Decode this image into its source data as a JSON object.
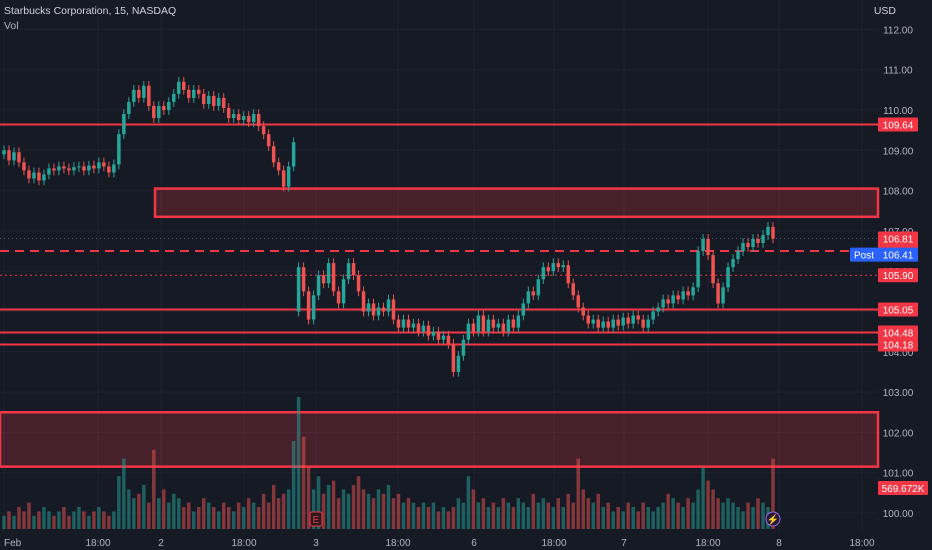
{
  "header": {
    "symbol_line": "Starbucks Corporation, 15, NASDAQ",
    "volume_label": "Vol",
    "currency": "USD"
  },
  "colors": {
    "background": "#161a25",
    "up": "#26a69a",
    "down": "#ef5350",
    "level": "#f23645",
    "post_badge": "#2962ff"
  },
  "chart_data": {
    "type": "candlestick",
    "title": "Starbucks Corporation, 15, NASDAQ",
    "ylabel": "USD",
    "ylim": [
      99.7,
      112.5
    ],
    "y_ticks": [
      100.0,
      101.0,
      102.0,
      103.0,
      104.0,
      105.0,
      106.0,
      107.0,
      108.0,
      109.0,
      110.0,
      111.0,
      112.0
    ],
    "x_ticks": [
      "Feb",
      "18:00",
      "2",
      "18:00",
      "3",
      "18:00",
      "6",
      "18:00",
      "7",
      "18:00",
      "8",
      "18:00"
    ],
    "grid": true,
    "price_levels": [
      {
        "label": "109.64",
        "value": 109.64,
        "style": "solid"
      },
      {
        "label": "106.50",
        "value": 106.5,
        "style": "dashed"
      },
      {
        "label": "105.90",
        "value": 105.9,
        "style": "dotted"
      },
      {
        "label": "105.05",
        "value": 105.05,
        "style": "solid"
      },
      {
        "label": "104.48",
        "value": 104.48,
        "style": "solid"
      },
      {
        "label": "104.18",
        "value": 104.18,
        "style": "solid"
      }
    ],
    "zones": [
      {
        "from": 107.35,
        "to": 108.05
      },
      {
        "from": 101.15,
        "to": 102.5
      }
    ],
    "last_price": {
      "label": "106.81",
      "value": 106.81
    },
    "post_market": {
      "badge": "Post",
      "label": "106.41",
      "value": 106.41
    },
    "volume_label": "569.672K",
    "event_markers": [
      "E",
      "⚡"
    ],
    "series": [
      {
        "o": 108.9,
        "c": 109.0
      },
      {
        "o": 109.0,
        "c": 108.75
      },
      {
        "o": 108.75,
        "c": 108.95
      },
      {
        "o": 108.95,
        "c": 108.7
      },
      {
        "o": 108.7,
        "c": 108.5
      },
      {
        "o": 108.5,
        "c": 108.3
      },
      {
        "o": 108.3,
        "c": 108.45
      },
      {
        "o": 108.45,
        "c": 108.25
      },
      {
        "o": 108.25,
        "c": 108.4
      },
      {
        "o": 108.4,
        "c": 108.55
      },
      {
        "o": 108.55,
        "c": 108.5
      },
      {
        "o": 108.5,
        "c": 108.6
      },
      {
        "o": 108.6,
        "c": 108.55
      },
      {
        "o": 108.55,
        "c": 108.5
      },
      {
        "o": 108.5,
        "c": 108.58
      },
      {
        "o": 108.58,
        "c": 108.6
      },
      {
        "o": 108.6,
        "c": 108.5
      },
      {
        "o": 108.5,
        "c": 108.62
      },
      {
        "o": 108.62,
        "c": 108.55
      },
      {
        "o": 108.55,
        "c": 108.7
      },
      {
        "o": 108.7,
        "c": 108.6
      },
      {
        "o": 108.6,
        "c": 108.45
      },
      {
        "o": 108.45,
        "c": 108.65
      },
      {
        "o": 108.65,
        "c": 109.4
      },
      {
        "o": 109.4,
        "c": 109.9
      },
      {
        "o": 109.9,
        "c": 110.2
      },
      {
        "o": 110.2,
        "c": 110.5
      },
      {
        "o": 110.5,
        "c": 110.3
      },
      {
        "o": 110.3,
        "c": 110.6
      },
      {
        "o": 110.6,
        "c": 110.1
      },
      {
        "o": 110.1,
        "c": 109.8
      },
      {
        "o": 109.8,
        "c": 110.1
      },
      {
        "o": 110.1,
        "c": 110.0
      },
      {
        "o": 110.0,
        "c": 110.2
      },
      {
        "o": 110.2,
        "c": 110.4
      },
      {
        "o": 110.4,
        "c": 110.7
      },
      {
        "o": 110.7,
        "c": 110.5
      },
      {
        "o": 110.5,
        "c": 110.3
      },
      {
        "o": 110.3,
        "c": 110.5
      },
      {
        "o": 110.5,
        "c": 110.4
      },
      {
        "o": 110.4,
        "c": 110.15
      },
      {
        "o": 110.15,
        "c": 110.35
      },
      {
        "o": 110.35,
        "c": 110.1
      },
      {
        "o": 110.1,
        "c": 110.3
      },
      {
        "o": 110.3,
        "c": 110.05
      },
      {
        "o": 110.05,
        "c": 109.8
      },
      {
        "o": 109.8,
        "c": 109.9
      },
      {
        "o": 109.9,
        "c": 109.75
      },
      {
        "o": 109.75,
        "c": 109.85
      },
      {
        "o": 109.85,
        "c": 109.7
      },
      {
        "o": 109.7,
        "c": 109.9
      },
      {
        "o": 109.9,
        "c": 109.6
      },
      {
        "o": 109.6,
        "c": 109.4
      },
      {
        "o": 109.4,
        "c": 109.1
      },
      {
        "o": 109.1,
        "c": 108.7
      },
      {
        "o": 108.7,
        "c": 108.5
      },
      {
        "o": 108.5,
        "c": 108.1
      },
      {
        "o": 108.1,
        "c": 108.6
      },
      {
        "o": 108.6,
        "c": 109.2
      },
      {
        "o": 105.0,
        "c": 106.1
      },
      {
        "o": 106.1,
        "c": 105.5
      },
      {
        "o": 105.5,
        "c": 104.8
      },
      {
        "o": 104.8,
        "c": 105.4
      },
      {
        "o": 105.4,
        "c": 105.9
      },
      {
        "o": 105.9,
        "c": 105.7
      },
      {
        "o": 105.7,
        "c": 106.2
      },
      {
        "o": 106.2,
        "c": 105.5
      },
      {
        "o": 105.5,
        "c": 105.2
      },
      {
        "o": 105.2,
        "c": 105.8
      },
      {
        "o": 105.8,
        "c": 106.2
      },
      {
        "o": 106.2,
        "c": 105.9
      },
      {
        "o": 105.9,
        "c": 105.5
      },
      {
        "o": 105.5,
        "c": 105.0
      },
      {
        "o": 105.0,
        "c": 105.2
      },
      {
        "o": 105.2,
        "c": 104.9
      },
      {
        "o": 104.9,
        "c": 105.1
      },
      {
        "o": 105.1,
        "c": 105.0
      },
      {
        "o": 105.0,
        "c": 105.3
      },
      {
        "o": 105.3,
        "c": 104.8
      },
      {
        "o": 104.8,
        "c": 104.6
      },
      {
        "o": 104.6,
        "c": 104.8
      },
      {
        "o": 104.8,
        "c": 104.6
      },
      {
        "o": 104.6,
        "c": 104.7
      },
      {
        "o": 104.7,
        "c": 104.5
      },
      {
        "o": 104.5,
        "c": 104.65
      },
      {
        "o": 104.65,
        "c": 104.4
      },
      {
        "o": 104.4,
        "c": 104.5
      },
      {
        "o": 104.5,
        "c": 104.3
      },
      {
        "o": 104.3,
        "c": 104.4
      },
      {
        "o": 104.4,
        "c": 104.2
      },
      {
        "o": 104.2,
        "c": 103.5
      },
      {
        "o": 103.5,
        "c": 103.9
      },
      {
        "o": 103.9,
        "c": 104.3
      },
      {
        "o": 104.3,
        "c": 104.7
      },
      {
        "o": 104.7,
        "c": 104.5
      },
      {
        "o": 104.5,
        "c": 104.9
      },
      {
        "o": 104.9,
        "c": 104.5
      },
      {
        "o": 104.5,
        "c": 104.8
      },
      {
        "o": 104.8,
        "c": 104.6
      },
      {
        "o": 104.6,
        "c": 104.7
      },
      {
        "o": 104.7,
        "c": 104.5
      },
      {
        "o": 104.5,
        "c": 104.8
      },
      {
        "o": 104.8,
        "c": 104.6
      },
      {
        "o": 104.6,
        "c": 104.9
      },
      {
        "o": 104.9,
        "c": 105.2
      },
      {
        "o": 105.2,
        "c": 105.5
      },
      {
        "o": 105.5,
        "c": 105.4
      },
      {
        "o": 105.4,
        "c": 105.8
      },
      {
        "o": 105.8,
        "c": 106.1
      },
      {
        "o": 106.1,
        "c": 106.0
      },
      {
        "o": 106.0,
        "c": 106.2
      },
      {
        "o": 106.2,
        "c": 106.1
      },
      {
        "o": 106.1,
        "c": 106.15
      },
      {
        "o": 106.15,
        "c": 105.7
      },
      {
        "o": 105.7,
        "c": 105.4
      },
      {
        "o": 105.4,
        "c": 105.1
      },
      {
        "o": 105.1,
        "c": 104.9
      },
      {
        "o": 104.9,
        "c": 104.7
      },
      {
        "o": 104.7,
        "c": 104.8
      },
      {
        "o": 104.8,
        "c": 104.6
      },
      {
        "o": 104.6,
        "c": 104.75
      },
      {
        "o": 104.75,
        "c": 104.6
      },
      {
        "o": 104.6,
        "c": 104.8
      },
      {
        "o": 104.8,
        "c": 104.65
      },
      {
        "o": 104.65,
        "c": 104.85
      },
      {
        "o": 104.85,
        "c": 104.7
      },
      {
        "o": 104.7,
        "c": 104.9
      },
      {
        "o": 104.9,
        "c": 104.8
      },
      {
        "o": 104.8,
        "c": 104.6
      },
      {
        "o": 104.6,
        "c": 104.8
      },
      {
        "o": 104.8,
        "c": 105.0
      },
      {
        "o": 105.0,
        "c": 105.1
      },
      {
        "o": 105.1,
        "c": 105.3
      },
      {
        "o": 105.3,
        "c": 105.2
      },
      {
        "o": 105.2,
        "c": 105.4
      },
      {
        "o": 105.4,
        "c": 105.3
      },
      {
        "o": 105.3,
        "c": 105.5
      },
      {
        "o": 105.5,
        "c": 105.4
      },
      {
        "o": 105.4,
        "c": 105.6
      },
      {
        "o": 105.6,
        "c": 106.5
      },
      {
        "o": 106.5,
        "c": 106.8
      },
      {
        "o": 106.8,
        "c": 106.4
      },
      {
        "o": 106.4,
        "c": 105.7
      },
      {
        "o": 105.7,
        "c": 105.2
      },
      {
        "o": 105.2,
        "c": 105.6
      },
      {
        "o": 105.6,
        "c": 106.1
      },
      {
        "o": 106.1,
        "c": 106.3
      },
      {
        "o": 106.3,
        "c": 106.5
      },
      {
        "o": 106.5,
        "c": 106.7
      },
      {
        "o": 106.7,
        "c": 106.6
      },
      {
        "o": 106.6,
        "c": 106.8
      },
      {
        "o": 106.8,
        "c": 106.7
      },
      {
        "o": 106.7,
        "c": 106.9
      },
      {
        "o": 106.9,
        "c": 107.1
      },
      {
        "o": 107.1,
        "c": 106.81
      }
    ],
    "volume": [
      3,
      4,
      3,
      5,
      4,
      6,
      3,
      4,
      5,
      4,
      3,
      4,
      5,
      3,
      4,
      5,
      4,
      3,
      4,
      5,
      4,
      3,
      4,
      12,
      16,
      9,
      7,
      8,
      10,
      6,
      18,
      7,
      9,
      6,
      8,
      7,
      5,
      6,
      4,
      5,
      7,
      6,
      5,
      4,
      6,
      5,
      4,
      6,
      5,
      7,
      6,
      5,
      8,
      6,
      10,
      7,
      8,
      9,
      20,
      30,
      21,
      14,
      9,
      12,
      8,
      10,
      11,
      7,
      9,
      8,
      10,
      12,
      9,
      8,
      7,
      9,
      8,
      10,
      7,
      8,
      6,
      7,
      6,
      5,
      6,
      5,
      6,
      4,
      5,
      4,
      5,
      7,
      6,
      12,
      9,
      6,
      7,
      5,
      6,
      5,
      7,
      6,
      5,
      7,
      6,
      5,
      8,
      6,
      7,
      6,
      5,
      7,
      5,
      8,
      6,
      16,
      9,
      7,
      6,
      8,
      5,
      6,
      4,
      5,
      4,
      6,
      5,
      4,
      6,
      5,
      4,
      5,
      6,
      8,
      7,
      6,
      5,
      7,
      6,
      9,
      14,
      11,
      9,
      7,
      6,
      7,
      6,
      5,
      4,
      6,
      5,
      7,
      6,
      5,
      16
    ]
  }
}
